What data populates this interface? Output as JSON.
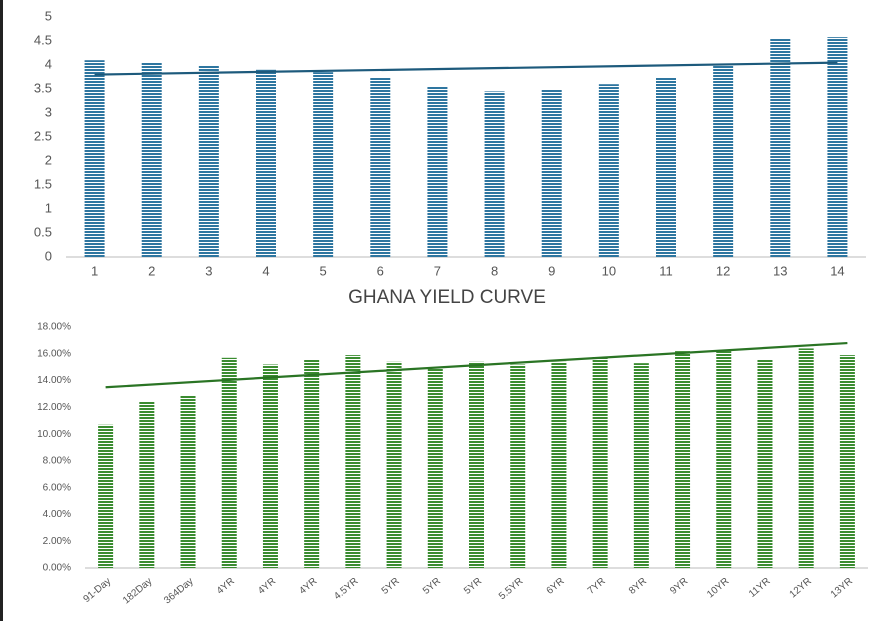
{
  "chart_data": [
    {
      "type": "bar",
      "categories": [
        "1",
        "2",
        "3",
        "4",
        "5",
        "6",
        "7",
        "8",
        "9",
        "10",
        "11",
        "12",
        "13",
        "14"
      ],
      "values": [
        4.1,
        4.05,
        4.0,
        3.9,
        3.85,
        3.75,
        3.55,
        3.45,
        3.48,
        3.6,
        3.75,
        4.0,
        4.55,
        4.58
      ],
      "color": "#2e76a0",
      "trendline": {
        "values": [
          3.8,
          4.05
        ],
        "color": "#1d5a7c"
      },
      "ylim": [
        0,
        5
      ],
      "yticks": [
        0,
        0.5,
        1,
        1.5,
        2,
        2.5,
        3,
        3.5,
        4,
        4.5,
        5
      ],
      "grid": false
    },
    {
      "type": "bar",
      "title": "GHANA YIELD CURVE",
      "categories": [
        "91-Day",
        "182Day",
        "364Day",
        "4YR",
        "4YR",
        "4YR",
        "4.5YR",
        "5YR",
        "5YR",
        "5YR",
        "5.5YR",
        "6YR",
        "7YR",
        "8YR",
        "9YR",
        "10YR",
        "11YR",
        "12YR",
        "13YR"
      ],
      "values": [
        10.7,
        12.4,
        12.9,
        15.7,
        15.2,
        15.6,
        15.9,
        15.4,
        15.0,
        15.4,
        15.2,
        15.4,
        15.8,
        15.3,
        16.2,
        16.2,
        15.6,
        16.4,
        15.9
      ],
      "color": "#3a8c30",
      "trendline": {
        "values": [
          13.5,
          16.8
        ],
        "color": "#2a7424"
      },
      "ylim": [
        0,
        18
      ],
      "yticks": [
        {
          "value": 0,
          "label": "0.00%"
        },
        {
          "value": 2,
          "label": "2.00%"
        },
        {
          "value": 4,
          "label": "4.00%"
        },
        {
          "value": 6,
          "label": "6.00%"
        },
        {
          "value": 8,
          "label": "8.00%"
        },
        {
          "value": 10,
          "label": "10.00%"
        },
        {
          "value": 12,
          "label": "12.00%"
        },
        {
          "value": 14,
          "label": "14.00%"
        },
        {
          "value": 16,
          "label": "16.00%"
        },
        {
          "value": 18,
          "label": "18.00%"
        }
      ],
      "grid": false
    }
  ]
}
